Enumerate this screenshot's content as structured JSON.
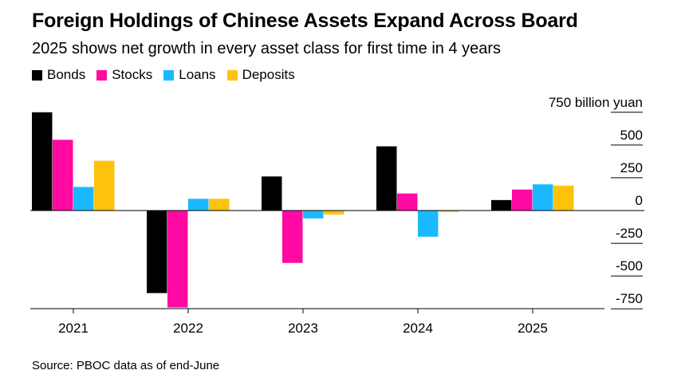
{
  "title": "Foreign Holdings of Chinese Assets Expand Across Board",
  "subtitle": "2025 shows net growth in every asset class for first time in 4 years",
  "source": "Source: PBOC data as of end-June",
  "colors": {
    "Bonds": "#000000",
    "Stocks": "#ff0aa2",
    "Loans": "#1ab9ff",
    "Deposits": "#fdc20c"
  },
  "chart_data": {
    "type": "bar",
    "title": "Foreign Holdings of Chinese Assets Expand Across Board",
    "subtitle": "2025 shows net growth in every asset class for first time in 4 years",
    "categories": [
      "2021",
      "2022",
      "2023",
      "2024",
      "2025"
    ],
    "series": [
      {
        "name": "Bonds",
        "values": [
          750,
          -630,
          260,
          490,
          80
        ]
      },
      {
        "name": "Stocks",
        "values": [
          540,
          -740,
          -400,
          130,
          160
        ]
      },
      {
        "name": "Loans",
        "values": [
          180,
          90,
          -60,
          -200,
          200
        ]
      },
      {
        "name": "Deposits",
        "values": [
          380,
          90,
          -30,
          -10,
          190
        ]
      }
    ],
    "ylabel": "750 billion yuan",
    "yticks": [
      {
        "value": 750,
        "label": "750 billion yuan"
      },
      {
        "value": 500,
        "label": "500"
      },
      {
        "value": 250,
        "label": "250"
      },
      {
        "value": 0,
        "label": "0"
      },
      {
        "value": -250,
        "label": "-250"
      },
      {
        "value": -500,
        "label": "-500"
      },
      {
        "value": -750,
        "label": "-750"
      }
    ],
    "ylim": [
      -750,
      750
    ],
    "legend_position": "top-left",
    "grid": false
  }
}
